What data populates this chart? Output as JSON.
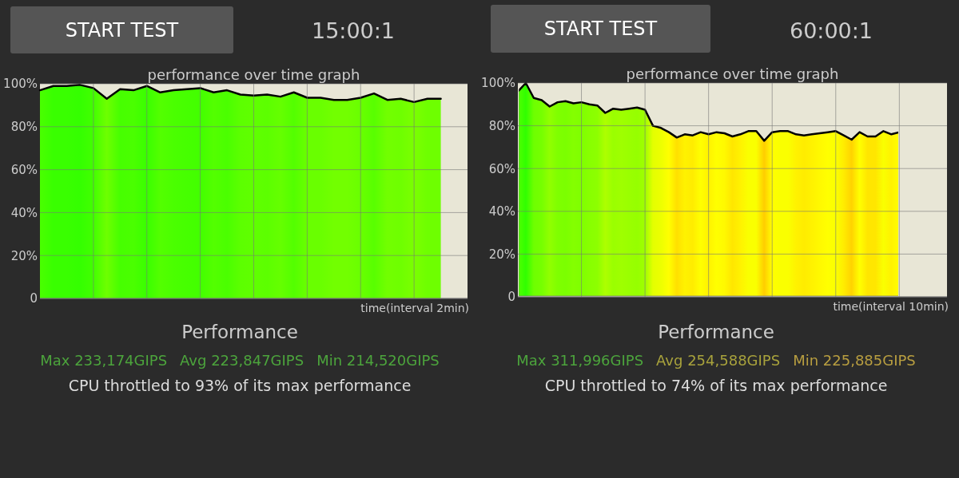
{
  "chart_data": [
    {
      "type": "area",
      "title": "performance over time graph",
      "xlabel": "time(interval 2min)",
      "categories": [
        null,
        null,
        null,
        null,
        null,
        null,
        null,
        null,
        null,
        null,
        null,
        null,
        null,
        null,
        null,
        null,
        null,
        null,
        null,
        null,
        null,
        null,
        null,
        null,
        null,
        null,
        null,
        null,
        null,
        null,
        null
      ],
      "ylim": [
        0,
        100
      ],
      "yticks": [
        {
          "value": 0,
          "label": "0"
        },
        {
          "value": 20,
          "label": "20%"
        },
        {
          "value": 40,
          "label": "40%"
        },
        {
          "value": 60,
          "label": "60%"
        },
        {
          "value": 80,
          "label": "80%"
        },
        {
          "value": 100,
          "label": "100%"
        }
      ],
      "grid": true,
      "series": [
        {
          "type": "line",
          "color": "#000000",
          "values": [
            97,
            99,
            99,
            99.5,
            98,
            93,
            97.5,
            97,
            99,
            96,
            97,
            97.5,
            98,
            96,
            97,
            95,
            94.5,
            95,
            94,
            96,
            93.5,
            93.5,
            92.5,
            92.5,
            93.5,
            95.5,
            92.5,
            93,
            91.5,
            93,
            93
          ]
        }
      ],
      "annotations": [
        "START TEST",
        "15:00:1",
        "Performance",
        "Max 233,174GIPS",
        "Avg 223,847GIPS",
        "Min 214,520GIPS",
        "CPU throttled to 93% of its max performance"
      ]
    },
    {
      "type": "area",
      "title": "performance over time graph",
      "xlabel": "time(interval 10min)",
      "categories": [
        null,
        null,
        null,
        null,
        null,
        null,
        null,
        null,
        null,
        null,
        null,
        null,
        null,
        null,
        null,
        null,
        null,
        null,
        null,
        null,
        null,
        null,
        null,
        null,
        null,
        null,
        null,
        null,
        null,
        null,
        null,
        null,
        null,
        null,
        null,
        null,
        null,
        null,
        null,
        null,
        null,
        null,
        null,
        null,
        null,
        null,
        null,
        null,
        null
      ],
      "ylim": [
        0,
        100
      ],
      "yticks": [
        {
          "value": 0,
          "label": "0"
        },
        {
          "value": 20,
          "label": "20%"
        },
        {
          "value": 40,
          "label": "40%"
        },
        {
          "value": 60,
          "label": "60%"
        },
        {
          "value": 80,
          "label": "80%"
        },
        {
          "value": 100,
          "label": "100%"
        }
      ],
      "grid": true,
      "series": [
        {
          "color": "#000000",
          "values": [
            96,
            100,
            93,
            92,
            89,
            91,
            91.5,
            90.5,
            91,
            90,
            89.5,
            86,
            88,
            87.5,
            88,
            88.5,
            87.5,
            80,
            79,
            77,
            74.5,
            76,
            75.5,
            77,
            76,
            77,
            76.5,
            75,
            76,
            77.5,
            77.5,
            73,
            77,
            77.5,
            77.5,
            76,
            75.5,
            76,
            76.5,
            77,
            77.5,
            75.5,
            73.5,
            77,
            75,
            75,
            77.5,
            76,
            77
          ]
        }
      ],
      "annotations": [
        "START TEST",
        "60:00:1",
        "Performance",
        "Max 311,996GIPS",
        "Avg 254,588GIPS",
        "Min 225,885GIPS",
        "CPU throttled to 74% of its max performance"
      ]
    }
  ]
}
